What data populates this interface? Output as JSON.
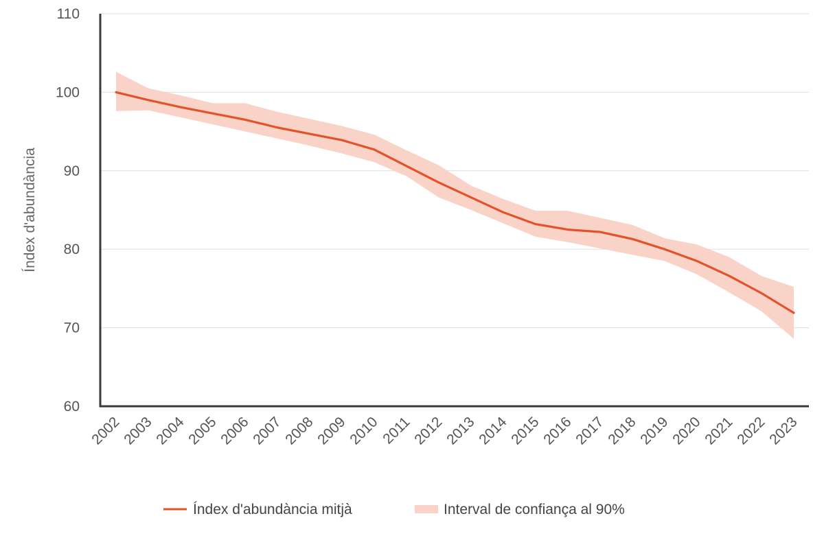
{
  "chart_data": {
    "type": "line",
    "ylabel": "Índex d'abundància",
    "xlabel": "",
    "ylim": [
      60,
      110
    ],
    "yticks": [
      60,
      70,
      80,
      90,
      100,
      110
    ],
    "x": [
      "2002",
      "2003",
      "2004",
      "2005",
      "2006",
      "2007",
      "2008",
      "2009",
      "2010",
      "2011",
      "2012",
      "2013",
      "2014",
      "2015",
      "2016",
      "2017",
      "2018",
      "2019",
      "2020",
      "2021",
      "2022",
      "2023"
    ],
    "series": [
      {
        "name": "Índex d'abundància mitjà",
        "color": "#e4522a",
        "values": [
          100.0,
          99.0,
          98.1,
          97.3,
          96.5,
          95.5,
          94.7,
          93.9,
          92.7,
          90.6,
          88.5,
          86.6,
          84.7,
          83.2,
          82.5,
          82.2,
          81.3,
          80.0,
          78.5,
          76.6,
          74.4,
          71.9
        ]
      },
      {
        "name": "Interval de confiança al 90%",
        "type": "band",
        "color": "#f9d3c8",
        "upper": [
          102.6,
          100.5,
          99.6,
          98.6,
          98.6,
          97.5,
          96.6,
          95.7,
          94.6,
          92.6,
          90.7,
          88.1,
          86.4,
          84.9,
          84.9,
          84.0,
          83.1,
          81.4,
          80.6,
          79.0,
          76.6,
          75.2
        ],
        "lower": [
          97.6,
          97.7,
          96.8,
          95.9,
          95.0,
          94.1,
          93.2,
          92.2,
          91.1,
          89.3,
          86.6,
          85.0,
          83.3,
          81.6,
          80.9,
          80.1,
          79.3,
          78.5,
          76.8,
          74.5,
          72.1,
          68.6
        ]
      }
    ],
    "grid": "horizontal",
    "legend": "bottom-center"
  }
}
